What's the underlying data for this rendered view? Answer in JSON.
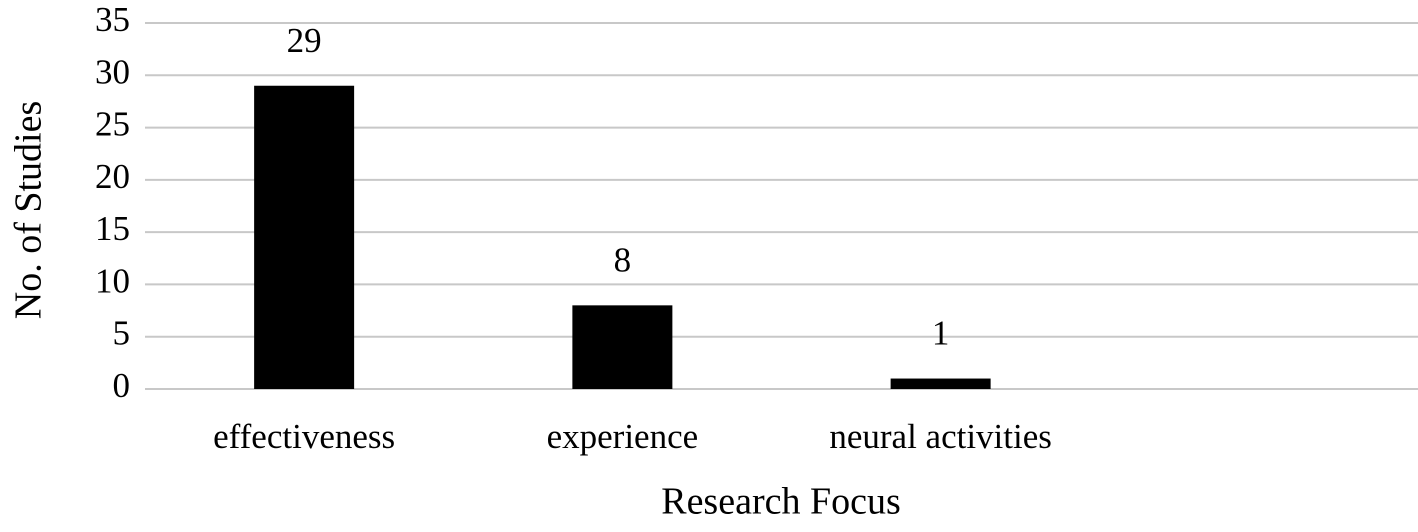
{
  "chart_data": {
    "type": "bar",
    "x_label": "Research Focus",
    "y_label": "No. of Studies",
    "categories": [
      "effectiveness",
      "experience",
      "neural activities",
      null
    ],
    "values": [
      29,
      8,
      1,
      null
    ],
    "color": "#000000",
    "ylim": [
      0,
      35
    ],
    "yticks": [
      0,
      5,
      10,
      15,
      20,
      25,
      30,
      35
    ],
    "grid": true
  }
}
